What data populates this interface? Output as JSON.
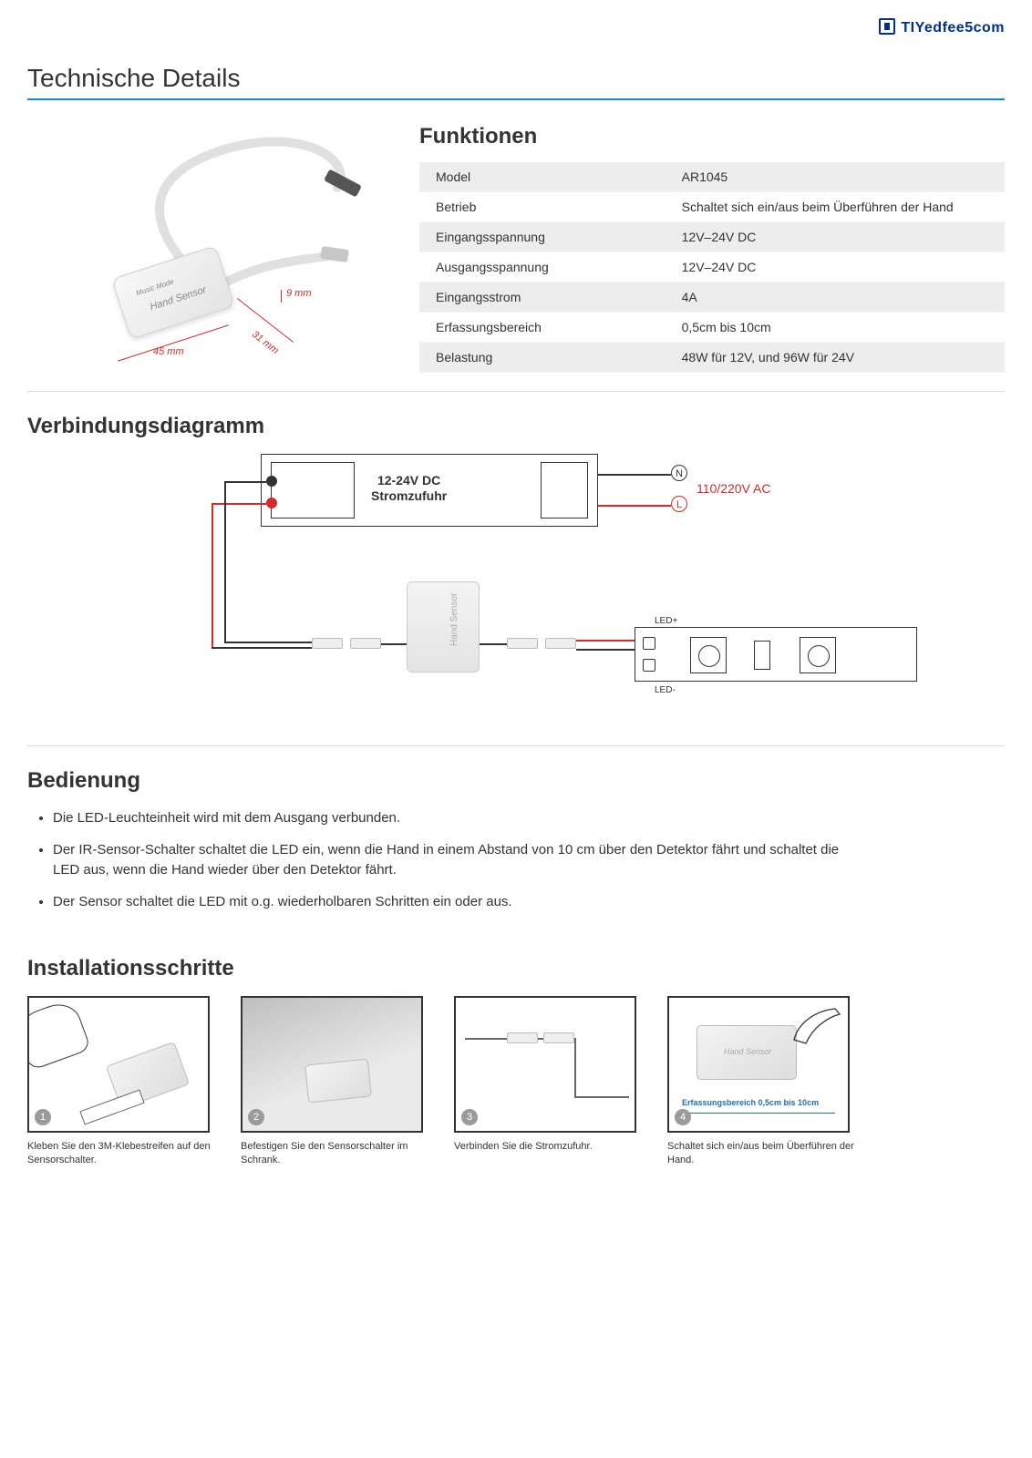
{
  "watermark": "TIYedfee5com",
  "page_title": "Technische Details",
  "accent_color": "#0d8ad6",
  "red": "#d62a2a",
  "product": {
    "label_main": "Hand Sensor",
    "label_small": "Music  Mode",
    "dimensions": {
      "width": "45 mm",
      "depth": "31 mm",
      "height": "9 mm"
    }
  },
  "functions": {
    "heading": "Funktionen",
    "rows": [
      {
        "k": "Model",
        "v": "AR1045"
      },
      {
        "k": "Betrieb",
        "v": "Schaltet sich ein/aus beim Überführen der Hand"
      },
      {
        "k": "Eingangsspannung",
        "v": "12V–24V DC"
      },
      {
        "k": "Ausgangsspannung",
        "v": "12V–24V DC"
      },
      {
        "k": "Eingangsstrom",
        "v": "4A"
      },
      {
        "k": "Erfassungsbereich",
        "v": "0,5cm bis 10cm"
      },
      {
        "k": "Belastung",
        "v": "48W für 12V, und 96W für 24V"
      }
    ]
  },
  "conn": {
    "heading": "Verbindungsdiagramm",
    "psu_line1": "12-24V DC",
    "psu_line2": "Stromzufuhr",
    "ac": "110/220V AC",
    "n": "N",
    "l": "L",
    "hand_sensor": "Hand Sensor",
    "led_plus": "LED+",
    "led_minus": "LED-"
  },
  "operation": {
    "heading": "Bedienung",
    "items": [
      "Die LED-Leuchteinheit wird mit dem Ausgang verbunden.",
      "Der IR-Sensor-Schalter schaltet die LED ein, wenn die Hand in einem Abstand von 10 cm über den Detektor fährt und schaltet die LED aus, wenn die Hand wieder über den Detektor fährt.",
      "Der Sensor schaltet die LED mit o.g. wiederholbaren Schritten ein oder aus."
    ]
  },
  "install": {
    "heading": "Installationsschritte",
    "steps": [
      {
        "n": "1",
        "caption": "Kleben Sie den 3M-Klebestreifen auf den Sensorschalter."
      },
      {
        "n": "2",
        "caption": "Befestigen Sie den Sensorschalter im Schrank."
      },
      {
        "n": "3",
        "caption": "Verbinden Sie die Stromzufuhr."
      },
      {
        "n": "4",
        "caption": "Schaltet sich ein/aus beim Überführen der Hand."
      }
    ],
    "step4_range": "Erfassungsbereich 0,5cm bis 10cm",
    "step4_label": "Hand Sensor"
  }
}
